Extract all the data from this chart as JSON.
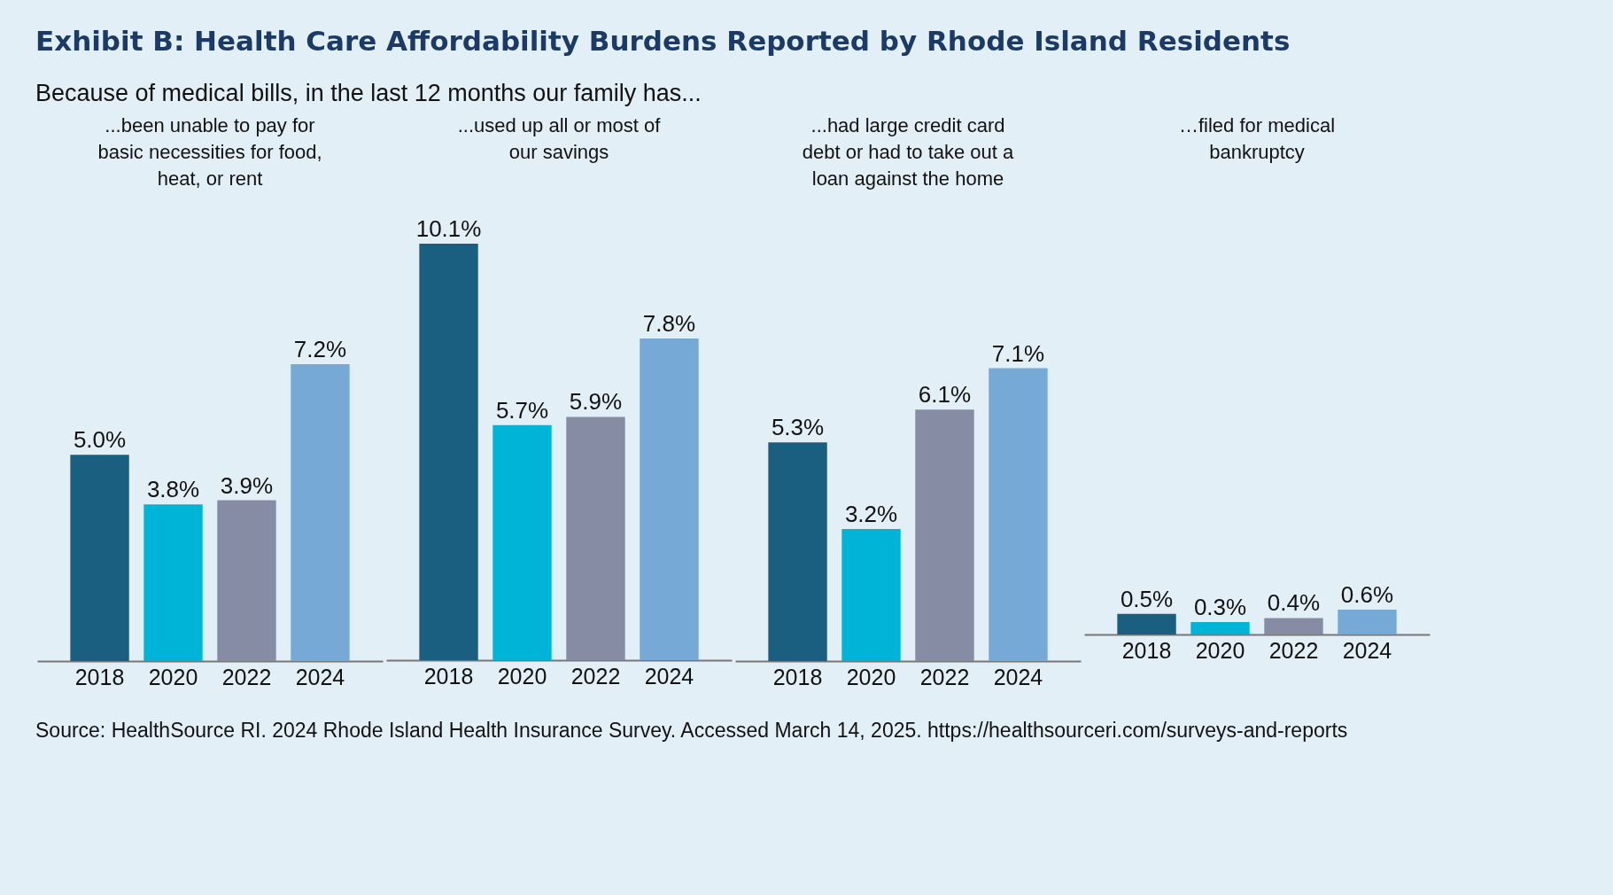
{
  "chart_data": [
    {
      "type": "other",
      "title": "Exhibit B: Health Care Affordability Burdens Reported by Rhode Island Residents",
      "subtitle": "Because of medical bills, in the last 12 months our family has...",
      "annotations": [
        "Source: HealthSource RI. 2024 Rhode Island Health Insurance Survey. Accessed March 14, 2025. https://healthsourceri.com/surveys-and-reports"
      ]
    },
    {
      "type": "bar",
      "title": "...been unable to pay for basic necessities for food, heat, or rent",
      "categories": [
        "2018",
        "2020",
        "2022",
        "2024"
      ],
      "values": [
        5.0,
        3.8,
        3.9,
        7.2
      ],
      "value_labels": [
        "5.0%",
        "3.8%",
        "3.9%",
        "7.2%"
      ],
      "colors": [
        "#1a5e80",
        "#00b4d8",
        "#878ca5",
        "#76a9d6"
      ]
    },
    {
      "type": "bar",
      "title": "...used up all or most of our savings",
      "categories": [
        "2018",
        "2020",
        "2022",
        "2024"
      ],
      "values": [
        10.1,
        5.7,
        5.9,
        7.8
      ],
      "value_labels": [
        "10.1%",
        "5.7%",
        "5.9%",
        "7.8%"
      ],
      "colors": [
        "#1a5e80",
        "#00b4d8",
        "#878ca5",
        "#76a9d6"
      ]
    },
    {
      "type": "bar",
      "title": "...had large credit card debt or had to take out a loan against the home",
      "categories": [
        "2018",
        "2020",
        "2022",
        "2024"
      ],
      "values": [
        5.3,
        3.2,
        6.1,
        7.1
      ],
      "value_labels": [
        "5.3%",
        "3.2%",
        "6.1%",
        "7.1%"
      ],
      "colors": [
        "#1a5e80",
        "#00b4d8",
        "#878ca5",
        "#76a9d6"
      ]
    },
    {
      "type": "bar",
      "title": "…filed for medical bankruptcy",
      "categories": [
        "2018",
        "2020",
        "2022",
        "2024"
      ],
      "values": [
        0.5,
        0.3,
        0.4,
        0.6
      ],
      "value_labels": [
        "0.5%",
        "0.3%",
        "0.4%",
        "0.6%"
      ],
      "colors": [
        "#1a5e80",
        "#00b4d8",
        "#878ca5",
        "#76a9d6"
      ]
    }
  ]
}
